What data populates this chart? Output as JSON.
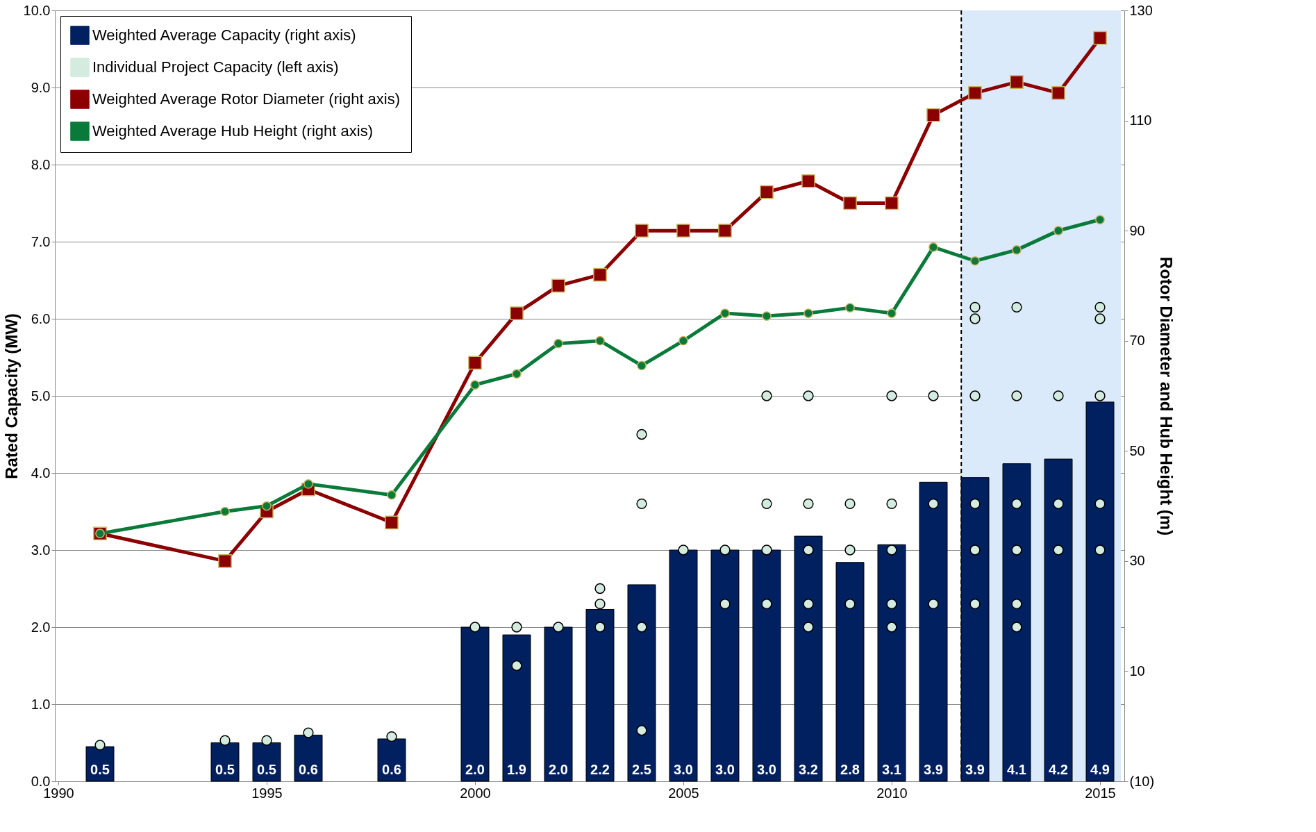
{
  "chart_data": {
    "type": "bar",
    "xlabel": null,
    "ylabel": "Rated Capacity (MW)",
    "y2label": "Rotor Diameter and Hub Height (m)",
    "x": [
      1991,
      1994,
      1995,
      1996,
      1998,
      2000,
      2001,
      2002,
      2003,
      2004,
      2005,
      2006,
      2007,
      2008,
      2009,
      2010,
      2011,
      2012,
      2013,
      2014,
      2015
    ],
    "xlim": [
      1990,
      2015.5
    ],
    "xticks": [
      1990,
      1995,
      2000,
      2005,
      2010,
      2015
    ],
    "ylim": [
      0,
      10
    ],
    "yticks": [
      {
        "value": 0,
        "label": "0.0"
      },
      {
        "value": 1,
        "label": "1.0"
      },
      {
        "value": 2,
        "label": "2.0"
      },
      {
        "value": 3,
        "label": "3.0"
      },
      {
        "value": 4,
        "label": "4.0"
      },
      {
        "value": 5,
        "label": "5.0"
      },
      {
        "value": 6,
        "label": "6.0"
      },
      {
        "value": 7,
        "label": "7.0"
      },
      {
        "value": 8,
        "label": "8.0"
      },
      {
        "value": 9,
        "label": "9.0"
      },
      {
        "value": 10,
        "label": "10.0"
      }
    ],
    "y2lim": [
      -10,
      130
    ],
    "y2ticks": [
      {
        "value": -10,
        "label": "(10)"
      },
      10,
      30,
      50,
      70,
      90,
      110,
      130
    ],
    "grid": "y",
    "legend": "top left",
    "series": [
      {
        "name": "Weighted Average Capacity (right axis)",
        "color": "#002060",
        "values": [
          0.45,
          0.5,
          0.5,
          0.6,
          0.55,
          2.0,
          1.9,
          2.0,
          2.23,
          2.55,
          3.0,
          3.0,
          3.0,
          3.18,
          2.84,
          3.07,
          3.88,
          3.94,
          4.12,
          4.18,
          4.92
        ],
        "value_labels": [
          "0.5",
          "0.5",
          "0.5",
          "0.6",
          "0.6",
          "2.0",
          "1.9",
          "2.0",
          "2.2",
          "2.5",
          "3.0",
          "3.0",
          "3.0",
          "3.2",
          "2.8",
          "3.1",
          "3.9",
          "3.9",
          "4.1",
          "4.2",
          "4.9"
        ]
      },
      {
        "type": "scatter",
        "name": "Individual Project Capacity (left axis)",
        "color": "#d3ecdf",
        "marker": "circle",
        "x": [
          1991,
          1994,
          1995,
          1996,
          1998,
          2000,
          2001,
          2001,
          2002,
          2003,
          2003,
          2003,
          2004,
          2004,
          2004,
          2004,
          2005,
          2006,
          2006,
          2007,
          2007,
          2007,
          2007,
          2008,
          2008,
          2008,
          2008,
          2008,
          2009,
          2009,
          2009,
          2010,
          2010,
          2010,
          2010,
          2010,
          2011,
          2011,
          2011,
          2012,
          2012,
          2012,
          2012,
          2012,
          2012,
          2013,
          2013,
          2013,
          2013,
          2013,
          2013,
          2014,
          2014,
          2014,
          2015,
          2015,
          2015,
          2015,
          2015
        ],
        "values": [
          0.47,
          0.53,
          0.53,
          0.63,
          0.58,
          2.0,
          2.0,
          1.5,
          2.0,
          2.5,
          2.3,
          2.0,
          4.5,
          3.6,
          2.0,
          0.66,
          3.0,
          3.0,
          2.3,
          5.0,
          3.6,
          3.0,
          2.3,
          5.0,
          3.6,
          3.0,
          2.3,
          2.0,
          3.6,
          3.0,
          2.3,
          5.0,
          3.6,
          3.0,
          2.3,
          2.0,
          5.0,
          3.6,
          2.3,
          6.15,
          6.0,
          5.0,
          3.6,
          3.0,
          2.3,
          6.15,
          5.0,
          3.6,
          3.0,
          2.3,
          2.0,
          5.0,
          3.6,
          3.0,
          6.15,
          6.0,
          5.0,
          3.6,
          3.0
        ]
      },
      {
        "type": "line",
        "axis": "y2",
        "marker": "square",
        "name": "Weighted Average Rotor Diameter (right axis)",
        "color": "#8b0000",
        "values": [
          35,
          30,
          39,
          43,
          37,
          66,
          75,
          80,
          82,
          90,
          90,
          90,
          97,
          99,
          95,
          95,
          111,
          115,
          117,
          115,
          125
        ]
      },
      {
        "type": "line",
        "axis": "y2",
        "marker": "circle",
        "name": "Weighted Average Hub Height (right axis)",
        "color": "#0a7a3a",
        "values": [
          35,
          39,
          40,
          44,
          42,
          62,
          64,
          69.5,
          70,
          65.5,
          70,
          75,
          74.5,
          75,
          76,
          75,
          87,
          84.5,
          86.5,
          90,
          92
        ]
      }
    ],
    "ref_lines": [
      {
        "axis": "x",
        "value": 2011.67,
        "line_style": "dashed",
        "color": "#000000"
      }
    ],
    "bands": [
      {
        "axis": "x",
        "from": 2011.67,
        "to": 2015.5,
        "color": "#dbeafa"
      }
    ]
  }
}
